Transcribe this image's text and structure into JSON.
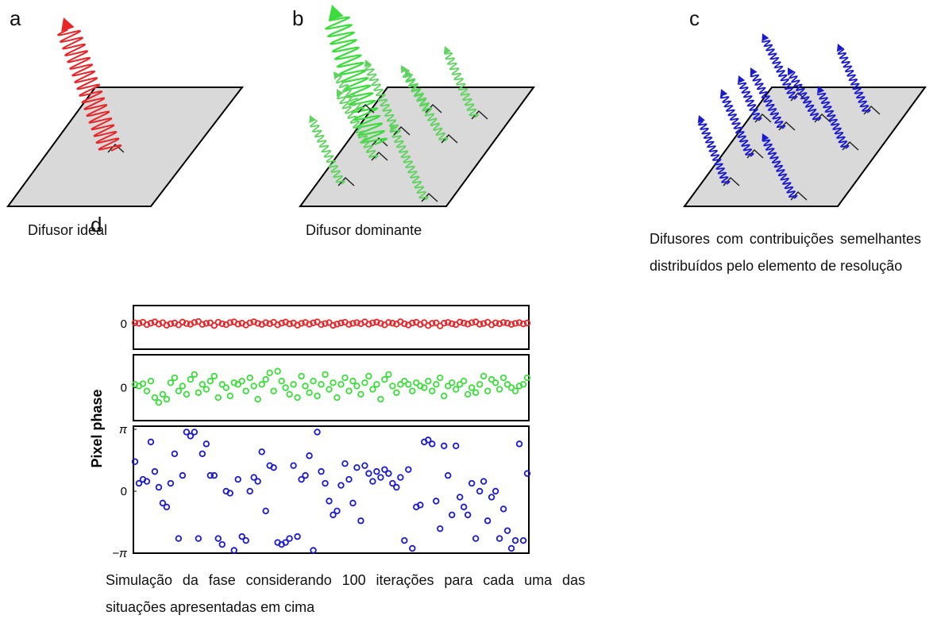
{
  "figure": {
    "a": {
      "label": "a",
      "caption": "Difusor ideal"
    },
    "b": {
      "label": "b",
      "caption": "Difusor dominante"
    },
    "c": {
      "label": "c",
      "caption": "Difusores com contribuições semelhantes distribuídos pelo elemento de resolução"
    },
    "d": {
      "label": "d",
      "caption": "Simulação da fase considerando 100 iterações para cada uma das situações apresentadas em cima"
    }
  },
  "chart_data": [
    {
      "type": "scatter",
      "color": "#e8262a",
      "ylim": [
        -1.4,
        1
      ],
      "yticks": [
        0
      ],
      "values": [
        0.05,
        0.02,
        0.08,
        -0.05,
        0.03,
        0.1,
        -0.02,
        0.06,
        -0.08,
        0.0,
        0.04,
        -0.06,
        0.09,
        0.01,
        -0.03,
        0.07,
        0.12,
        -0.04,
        0.02,
        0.05,
        -0.1,
        0.08,
        0.0,
        -0.05,
        0.06,
        0.1,
        -0.02,
        0.03,
        -0.07,
        0.05,
        0.11,
        0.02,
        -0.04,
        0.06,
        0.0,
        0.08,
        -0.06,
        0.03,
        0.09,
        -0.01,
        0.04,
        -0.08,
        0.02,
        0.07,
        -0.03,
        0.05,
        0.1,
        -0.05,
        0.01,
        0.06,
        -0.09,
        -0.02,
        0.04,
        0.08,
        -0.04,
        0.02,
        0.06,
        0.0,
        0.1,
        -0.03,
        0.05,
        0.09,
        0.02,
        -0.06,
        0.07,
        0.03,
        -0.02,
        0.11,
        0.0,
        -0.07,
        0.04,
        0.08,
        -0.04,
        0.06,
        -0.1,
        0.02,
        0.05,
        -0.12,
        0.03,
        0.07,
        0.0,
        -0.05,
        0.09,
        0.04,
        -0.02,
        0.06,
        0.1,
        -0.03,
        0.01,
        0.08,
        -0.06,
        0.05,
        0.0,
        0.07,
        0.03,
        -0.04,
        0.02,
        0.06,
        -0.01,
        0.04
      ]
    },
    {
      "type": "scatter",
      "color": "#3ddc3d",
      "ylim": [
        -1,
        1
      ],
      "yticks": [
        0
      ],
      "ylabel": "Pixel phase",
      "values": [
        0.1,
        0.05,
        0.12,
        -0.1,
        0.2,
        -0.3,
        -0.45,
        -0.2,
        -0.35,
        0.15,
        0.3,
        -0.1,
        0.05,
        -0.2,
        0.25,
        0.4,
        -0.15,
        0.1,
        -0.05,
        0.2,
        0.35,
        -0.3,
        0.1,
        0.0,
        -0.25,
        0.15,
        0.1,
        0.2,
        -0.1,
        0.3,
        0.05,
        -0.35,
        0.1,
        0.25,
        0.45,
        -0.1,
        0.5,
        0.2,
        0.0,
        -0.2,
        0.1,
        -0.3,
        0.35,
        0.05,
        -0.15,
        0.2,
        -0.25,
        0.1,
        0.4,
        -0.05,
        0.15,
        -0.3,
        0.1,
        0.3,
        -0.1,
        0.2,
        0.05,
        -0.2,
        0.15,
        0.35,
        -0.05,
        0.1,
        -0.35,
        0.25,
        0.4,
        0.05,
        -0.15,
        0.1,
        0.2,
        0.1,
        -0.1,
        0.15,
        0.05,
        0.0,
        0.2,
        -0.1,
        0.1,
        0.3,
        -0.25,
        0.05,
        0.15,
        -0.05,
        0.1,
        0.2,
        -0.2,
        0.0,
        -0.15,
        0.1,
        0.35,
        -0.1,
        0.25,
        0.15,
        -0.05,
        0.3,
        0.1,
        0.0,
        -0.1,
        0.05,
        0.1,
        0.3
      ]
    },
    {
      "type": "scatter",
      "color": "#1a1ad0",
      "ylim": [
        -3.14159,
        3.3
      ],
      "yticks": [
        {
          "value": 3.14159,
          "label": "π"
        },
        0,
        {
          "value": -3.14159,
          "label": "−π"
        }
      ],
      "values": [
        1.5,
        0.4,
        0.6,
        0.5,
        2.5,
        1.0,
        0.2,
        -0.6,
        -0.8,
        0.4,
        1.9,
        -2.4,
        0.8,
        3.0,
        2.8,
        3.0,
        -2.4,
        1.9,
        2.4,
        0.8,
        0.8,
        -2.4,
        -2.7,
        0.0,
        -0.1,
        -3.0,
        0.6,
        -2.3,
        -2.5,
        0.0,
        0.7,
        0.5,
        2.0,
        -1.0,
        1.3,
        1.2,
        -2.6,
        -2.7,
        -2.6,
        -2.4,
        1.3,
        -2.3,
        0.6,
        0.8,
        1.8,
        -3.0,
        3.0,
        1.0,
        0.4,
        -0.5,
        -1.2,
        -1.0,
        0.3,
        1.4,
        0.6,
        -0.6,
        1.2,
        -1.5,
        1.3,
        0.9,
        0.5,
        1.0,
        0.7,
        1.1,
        0.9,
        0.4,
        0.2,
        0.7,
        -2.5,
        1.1,
        -2.9,
        -0.8,
        -0.7,
        2.5,
        2.6,
        2.4,
        -0.5,
        -1.9,
        2.3,
        0.8,
        -1.2,
        2.3,
        -0.3,
        -0.8,
        -1.2,
        0.4,
        -2.4,
        0.0,
        0.5,
        -1.5,
        -0.3,
        0.0,
        -2.4,
        -0.9,
        -2.0,
        -2.9,
        -2.5,
        2.4,
        -2.5,
        0.9
      ]
    }
  ]
}
